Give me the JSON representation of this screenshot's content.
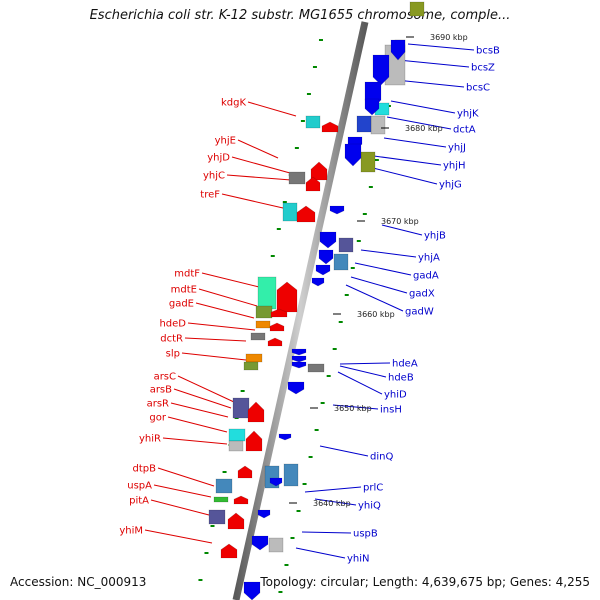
{
  "title": "Escherichia coli str. K-12 substr. MG1655 chromosome, comple...",
  "footer": {
    "accession": "Accession: NC_000913",
    "topology": "Topology: circular; Length: 4,639,675 bp; Genes: 4,255"
  },
  "colors": {
    "forward_label": "#dd0000",
    "reverse_label": "#0000cc",
    "forward_arrow": "#ee0000",
    "reverse_arrow": "#0000ee",
    "backbone": "#888888",
    "tick": "#008800"
  },
  "kbp_markers": [
    "3690 kbp",
    "3680 kbp",
    "3670 kbp",
    "3660 kbp",
    "3650 kbp",
    "3640 kbp"
  ],
  "genes_forward": [
    "kdgK",
    "yhjE",
    "yhjD",
    "yhjC",
    "treF",
    "mdtF",
    "mdtE",
    "gadE",
    "hdeD",
    "dctR",
    "slp",
    "arsC",
    "arsB",
    "arsR",
    "gor",
    "yhiR",
    "dtpB",
    "uspA",
    "pitA",
    "yhiM"
  ],
  "genes_reverse": [
    "bcsB",
    "bcsZ",
    "bcsC",
    "yhjK",
    "dctA",
    "yhjJ",
    "yhjH",
    "yhjG",
    "yhjB",
    "yhjA",
    "gadA",
    "gadX",
    "gadW",
    "hdeA",
    "hdeB",
    "yhiD",
    "insH",
    "dinQ",
    "prlC",
    "yhiQ",
    "uspB",
    "yhiN"
  ]
}
